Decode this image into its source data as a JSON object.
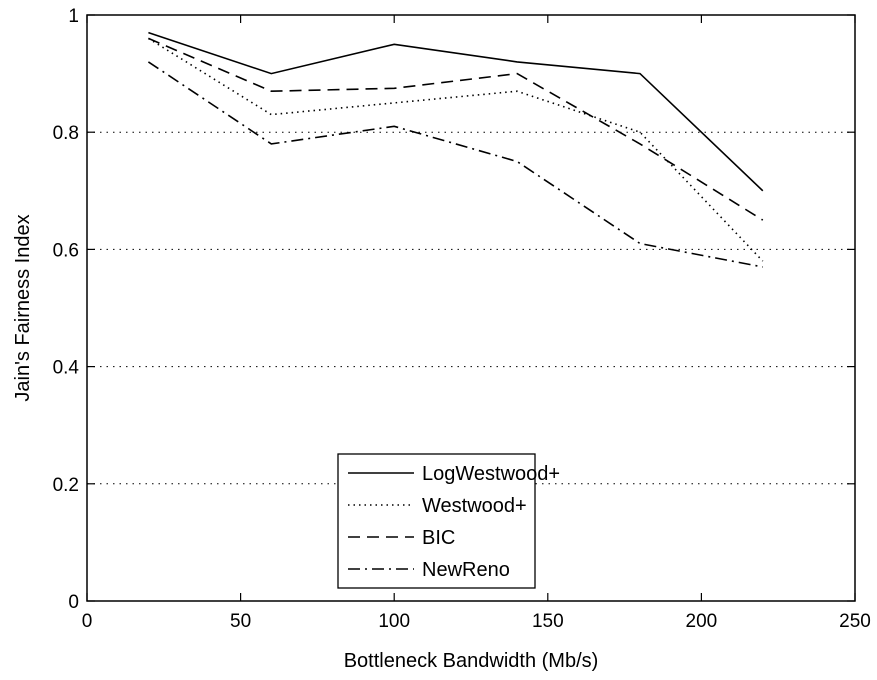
{
  "chart_data": {
    "type": "line",
    "title": "",
    "xlabel": "Bottleneck Bandwidth (Mb/s)",
    "ylabel": "Jain's Fairness Index",
    "xlim": [
      0,
      250
    ],
    "ylim": [
      0,
      1
    ],
    "xticks": [
      0,
      50,
      100,
      150,
      200,
      250
    ],
    "yticks": [
      0,
      0.2,
      0.4,
      0.6,
      0.8,
      1
    ],
    "xtick_labels": [
      "0",
      "50",
      "100",
      "150",
      "200",
      "250"
    ],
    "ytick_labels": [
      "0",
      "0.2",
      "0.4",
      "0.6",
      "0.8",
      "1"
    ],
    "grid": "horizontal dotted",
    "legend_position": "bottom-center",
    "x": [
      20,
      60,
      100,
      140,
      180,
      220
    ],
    "series": [
      {
        "name": "LogWestwood+",
        "values": [
          0.97,
          0.9,
          0.95,
          0.92,
          0.9,
          0.7
        ],
        "style": "solid"
      },
      {
        "name": "Westwood+",
        "values": [
          0.96,
          0.83,
          0.85,
          0.87,
          0.8,
          0.58
        ],
        "style": "dotted"
      },
      {
        "name": "BIC",
        "values": [
          0.96,
          0.87,
          0.875,
          0.9,
          0.78,
          0.65
        ],
        "style": "dashed"
      },
      {
        "name": "NewReno",
        "values": [
          0.92,
          0.78,
          0.81,
          0.75,
          0.61,
          0.57
        ],
        "style": "dashdot"
      }
    ],
    "line_color": "#000000"
  }
}
